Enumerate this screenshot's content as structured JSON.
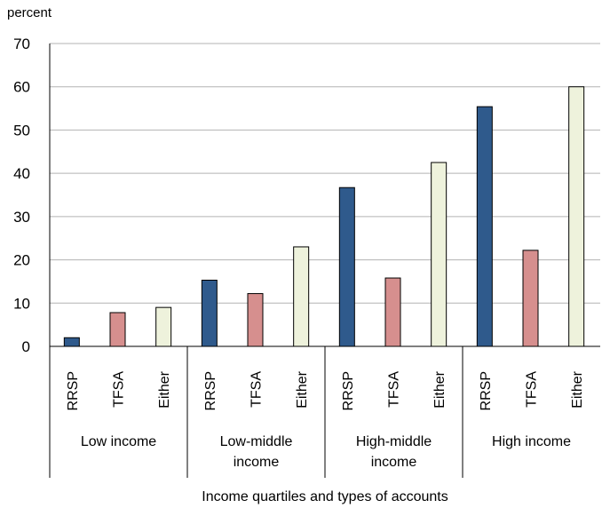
{
  "chart_data": {
    "type": "bar",
    "title": "",
    "ylabel": "percent",
    "xlabel": "Income quartiles and types of accounts",
    "ylim": [
      0,
      70
    ],
    "yticks": [
      0,
      10,
      20,
      30,
      40,
      50,
      60,
      70
    ],
    "grid": true,
    "legend": "none",
    "colors": {
      "RRSP": "#2f5a8c",
      "TFSA": "#d68f8e",
      "Either": "#eef2dc"
    },
    "groups": [
      {
        "label": "Low income",
        "lines": [
          "Low income"
        ],
        "bars": [
          {
            "category": "RRSP",
            "value": 2
          },
          {
            "category": "TFSA",
            "value": 7.8
          },
          {
            "category": "Either",
            "value": 9
          }
        ]
      },
      {
        "label": "Low-middle income",
        "lines": [
          "Low-middle",
          "income"
        ],
        "bars": [
          {
            "category": "RRSP",
            "value": 15.3
          },
          {
            "category": "TFSA",
            "value": 12.2
          },
          {
            "category": "Either",
            "value": 23
          }
        ]
      },
      {
        "label": "High-middle income",
        "lines": [
          "High-middle",
          "income"
        ],
        "bars": [
          {
            "category": "RRSP",
            "value": 36.7
          },
          {
            "category": "TFSA",
            "value": 15.8
          },
          {
            "category": "Either",
            "value": 42.5
          }
        ]
      },
      {
        "label": "High income",
        "lines": [
          "High income"
        ],
        "bars": [
          {
            "category": "RRSP",
            "value": 55.4
          },
          {
            "category": "TFSA",
            "value": 22.2
          },
          {
            "category": "Either",
            "value": 60
          }
        ]
      }
    ]
  }
}
